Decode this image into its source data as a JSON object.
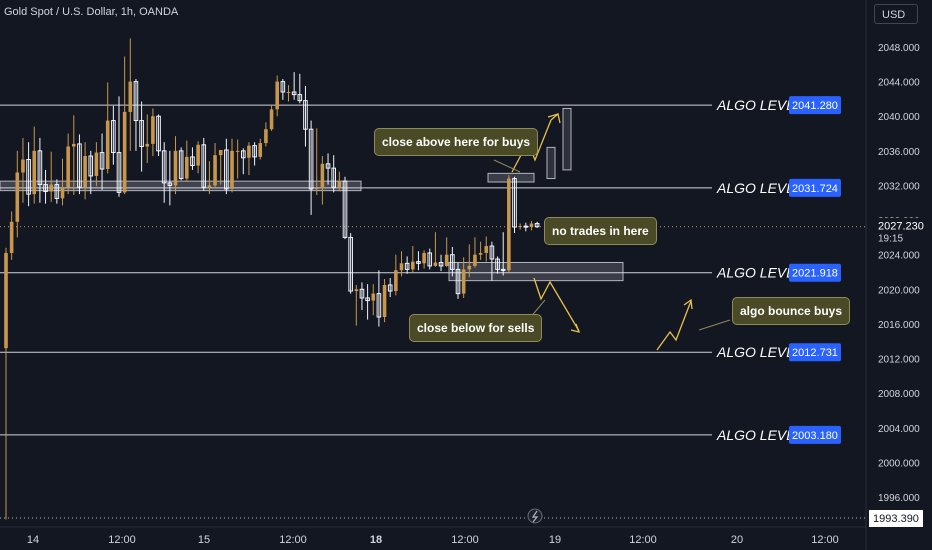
{
  "header": {
    "symbol": "Gold Spot / U.S. Dollar, 1h, OANDA",
    "currency": "USD"
  },
  "colors": {
    "background": "#131722",
    "candle_up": "#c8974b",
    "candle_down": "#f0f3fa",
    "level_line": "#d1d4dc",
    "price_badge": "#2962ff",
    "arrow": "#e8c04a",
    "note_bg": "#4a4a26"
  },
  "chart_data": {
    "type": "candlestick",
    "y_axis": {
      "ticks": [
        "2048.000",
        "2044.000",
        "2040.000",
        "2036.000",
        "2032.000",
        "2028.000",
        "2024.000",
        "2020.000",
        "2016.000",
        "2012.000",
        "2008.000",
        "2004.000",
        "2000.000",
        "1996.000"
      ],
      "range": [
        1992.6,
        2050.8
      ],
      "scale": "linear"
    },
    "x_axis": {
      "ticks": [
        "14",
        "12:00",
        "15",
        "12:00",
        "18",
        "12:00",
        "19",
        "12:00",
        "20",
        "12:00"
      ]
    },
    "current_price": "2027.230",
    "countdown": "19:15",
    "low_marker": "1993.390",
    "algo_levels": [
      {
        "label": "ALGO LEVEL",
        "price": "2041.280",
        "value": 2041.28
      },
      {
        "label": "ALGO LEVEL",
        "price": "2031.724",
        "value": 2031.724
      },
      {
        "label": "ALGO LEVEL",
        "price": "2021.918",
        "value": 2021.918
      },
      {
        "label": "ALGO LEVEL",
        "price": "2012.731",
        "value": 2012.731
      },
      {
        "label": "ALGO LEVEL",
        "price": "2003.180",
        "value": 2003.18
      }
    ],
    "annotations": [
      {
        "id": "buys",
        "text": "close above here for buys"
      },
      {
        "id": "notrades",
        "text": "no trades in here"
      },
      {
        "id": "sells",
        "text": "close below for sells"
      },
      {
        "id": "bounce",
        "text": "algo bounce buys"
      }
    ],
    "candles": [
      [
        2013.2,
        2024.2,
        1993.4,
        2024.8
      ],
      [
        2024.2,
        2027.8,
        2023.4,
        2029.0
      ],
      [
        2027.8,
        2033.5,
        2026.0,
        2036.0
      ],
      [
        2033.5,
        2035.0,
        2030.0,
        2037.5
      ],
      [
        2035.0,
        2031.0,
        2029.6,
        2037.0
      ],
      [
        2031.0,
        2036.0,
        2029.9,
        2038.8
      ],
      [
        2036.0,
        2032.1,
        2030.0,
        2037.5
      ],
      [
        2032.1,
        2031.3,
        2029.9,
        2033.8
      ],
      [
        2031.3,
        2032.1,
        2030.1,
        2035.9
      ],
      [
        2032.1,
        2030.5,
        2029.9,
        2032.7
      ],
      [
        2030.5,
        2031.8,
        2029.7,
        2035.1
      ],
      [
        2031.8,
        2036.5,
        2031.0,
        2038.0
      ],
      [
        2036.5,
        2036.8,
        2030.9,
        2040.1
      ],
      [
        2036.8,
        2031.8,
        2031.0,
        2037.9
      ],
      [
        2031.8,
        2035.4,
        2030.4,
        2037.0
      ],
      [
        2035.4,
        2033.1,
        2031.0,
        2036.0
      ],
      [
        2033.1,
        2035.8,
        2031.9,
        2037.0
      ],
      [
        2035.8,
        2033.9,
        2031.5,
        2038.0
      ],
      [
        2033.9,
        2039.5,
        2033.4,
        2043.9
      ],
      [
        2039.5,
        2035.8,
        2034.4,
        2041.2
      ],
      [
        2035.8,
        2031.2,
        2030.7,
        2042.3
      ],
      [
        2031.2,
        2040.5,
        2031.0,
        2046.9
      ],
      [
        2040.5,
        2044.0,
        2036.0,
        2049.0
      ],
      [
        2044.0,
        2039.5,
        2036.0,
        2044.3
      ],
      [
        2039.5,
        2036.5,
        2033.6,
        2041.7
      ],
      [
        2036.5,
        2036.8,
        2034.6,
        2040.2
      ],
      [
        2036.8,
        2040.0,
        2035.4,
        2040.9
      ],
      [
        2040.0,
        2036.0,
        2035.4,
        2040.2
      ],
      [
        2036.0,
        2032.3,
        2030.0,
        2037.0
      ],
      [
        2032.3,
        2032.0,
        2029.7,
        2036.0
      ],
      [
        2032.0,
        2036.0,
        2031.0,
        2037.7
      ],
      [
        2036.0,
        2032.8,
        2032.6,
        2036.4
      ],
      [
        2032.8,
        2035.3,
        2032.4,
        2037.2
      ],
      [
        2035.3,
        2034.3,
        2033.8,
        2036.4
      ],
      [
        2034.3,
        2036.7,
        2033.4,
        2037.1
      ],
      [
        2036.7,
        2031.8,
        2031.4,
        2037.5
      ],
      [
        2031.8,
        2032.0,
        2031.0,
        2034.8
      ],
      [
        2032.0,
        2035.5,
        2031.7,
        2036.9
      ],
      [
        2035.5,
        2036.1,
        2032.1,
        2036.1
      ],
      [
        2036.1,
        2031.6,
        2031.0,
        2037.4
      ],
      [
        2031.6,
        2036.0,
        2031.2,
        2037.4
      ],
      [
        2036.0,
        2036.0,
        2032.8,
        2037.3
      ],
      [
        2036.0,
        2035.2,
        2033.3,
        2036.3
      ],
      [
        2035.2,
        2036.6,
        2033.2,
        2037.0
      ],
      [
        2036.6,
        2035.3,
        2034.3,
        2037.0
      ],
      [
        2035.3,
        2036.9,
        2035.0,
        2037.4
      ],
      [
        2036.9,
        2038.5,
        2036.5,
        2039.3
      ],
      [
        2038.5,
        2040.8,
        2038.3,
        2041.2
      ],
      [
        2040.8,
        2044.0,
        2040.0,
        2044.7
      ],
      [
        2044.0,
        2042.8,
        2041.9,
        2044.3
      ],
      [
        2042.8,
        2042.8,
        2041.7,
        2043.6
      ],
      [
        2042.8,
        2042.5,
        2041.9,
        2045.1
      ],
      [
        2042.5,
        2041.8,
        2041.5,
        2044.9
      ],
      [
        2041.8,
        2038.5,
        2036.5,
        2043.5
      ],
      [
        2038.5,
        2031.6,
        2028.6,
        2039.5
      ],
      [
        2031.6,
        2031.7,
        2030.9,
        2038.6
      ],
      [
        2031.7,
        2034.5,
        2029.8,
        2035.4
      ],
      [
        2034.5,
        2034.0,
        2032.1,
        2035.7
      ],
      [
        2034.0,
        2031.8,
        2031.2,
        2035.5
      ],
      [
        2031.8,
        2032.5,
        2031.3,
        2033.6
      ],
      [
        2032.5,
        2026.0,
        2025.8,
        2033.0
      ],
      [
        2026.0,
        2019.8,
        2019.5,
        2026.5
      ],
      [
        2019.8,
        2020.0,
        2015.8,
        2020.5
      ],
      [
        2020.0,
        2019.0,
        2017.6,
        2020.8
      ],
      [
        2019.0,
        2018.7,
        2016.5,
        2020.6
      ],
      [
        2018.7,
        2019.5,
        2017.0,
        2020.6
      ],
      [
        2019.5,
        2016.8,
        2015.7,
        2022.2
      ],
      [
        2016.8,
        2020.5,
        2016.2,
        2021.2
      ],
      [
        2020.5,
        2019.8,
        2019.1,
        2021.3
      ],
      [
        2019.8,
        2022.2,
        2019.3,
        2024.0
      ],
      [
        2022.2,
        2023.0,
        2021.5,
        2024.4
      ],
      [
        2023.0,
        2022.3,
        2021.8,
        2023.8
      ],
      [
        2022.3,
        2023.2,
        2022.0,
        2025.0
      ],
      [
        2023.2,
        2023.0,
        2022.2,
        2024.4
      ],
      [
        2023.0,
        2024.2,
        2022.4,
        2024.5
      ],
      [
        2024.2,
        2022.7,
        2022.3,
        2024.7
      ],
      [
        2022.7,
        2023.1,
        2022.6,
        2026.6
      ],
      [
        2023.1,
        2022.7,
        2022.1,
        2024.0
      ],
      [
        2022.7,
        2024.0,
        2022.6,
        2026.0
      ],
      [
        2024.0,
        2022.3,
        2021.5,
        2024.9
      ],
      [
        2022.3,
        2019.5,
        2018.9,
        2023.1
      ],
      [
        2019.5,
        2022.3,
        2019.0,
        2023.7
      ],
      [
        2022.3,
        2022.7,
        2021.4,
        2025.2
      ],
      [
        2022.7,
        2024.0,
        2022.5,
        2026.0
      ],
      [
        2024.0,
        2024.2,
        2023.4,
        2025.5
      ],
      [
        2024.2,
        2025.0,
        2023.2,
        2026.1
      ],
      [
        2025.0,
        2023.5,
        2021.0,
        2025.5
      ],
      [
        2023.5,
        2022.3,
        2021.8,
        2023.8
      ],
      [
        2022.3,
        2022.2,
        2021.6,
        2026.6
      ],
      [
        2022.2,
        2032.8,
        2021.9,
        2033.2
      ],
      [
        2032.8,
        2027.2,
        2026.5,
        2033.0
      ],
      [
        2027.2,
        2027.3,
        2026.9,
        2027.6
      ],
      [
        2027.3,
        2027.2,
        2026.7,
        2027.7
      ],
      [
        2027.2,
        2027.6,
        2026.8,
        2027.9
      ],
      [
        2027.6,
        2027.23,
        2027.1,
        2027.8
      ]
    ]
  }
}
